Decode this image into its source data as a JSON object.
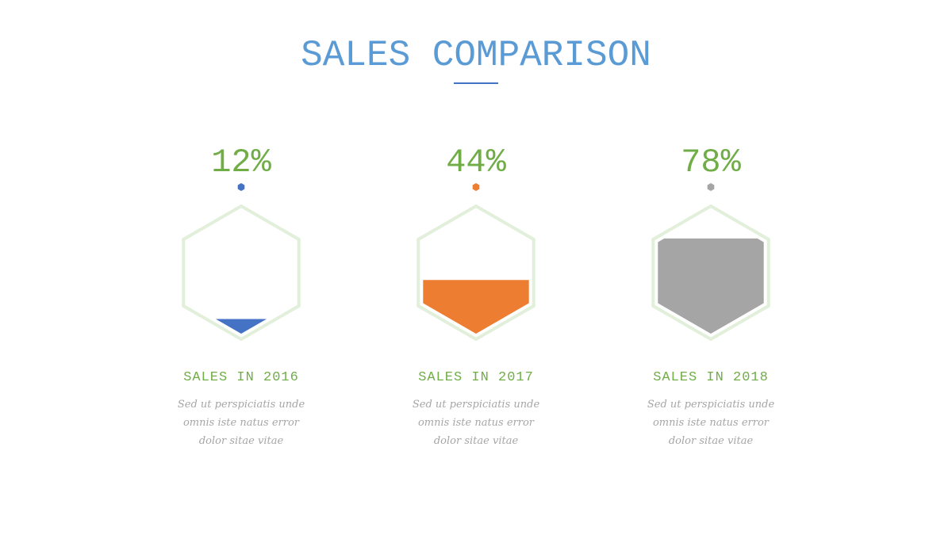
{
  "chart_data": {
    "type": "hexfill",
    "title": "SALES COMPARISON",
    "categories": [
      "SALES IN 2016",
      "SALES IN 2017",
      "SALES IN 2018"
    ],
    "values": [
      12,
      44,
      78
    ],
    "value_labels": [
      "12%",
      "44%",
      "78%"
    ],
    "colors": [
      "#4472c4",
      "#ed7d31",
      "#a5a5a5"
    ],
    "descriptions": [
      [
        "Sed ut perspiciatis unde",
        "omnis iste natus error",
        "dolor sitae vitae"
      ],
      [
        "Sed ut perspiciatis unde",
        "omnis iste natus error",
        "dolor sitae vitae"
      ],
      [
        "Sed ut perspiciatis unde",
        "omnis iste natus error",
        "dolor sitae vitae"
      ]
    ],
    "ylim": [
      0,
      100
    ]
  }
}
